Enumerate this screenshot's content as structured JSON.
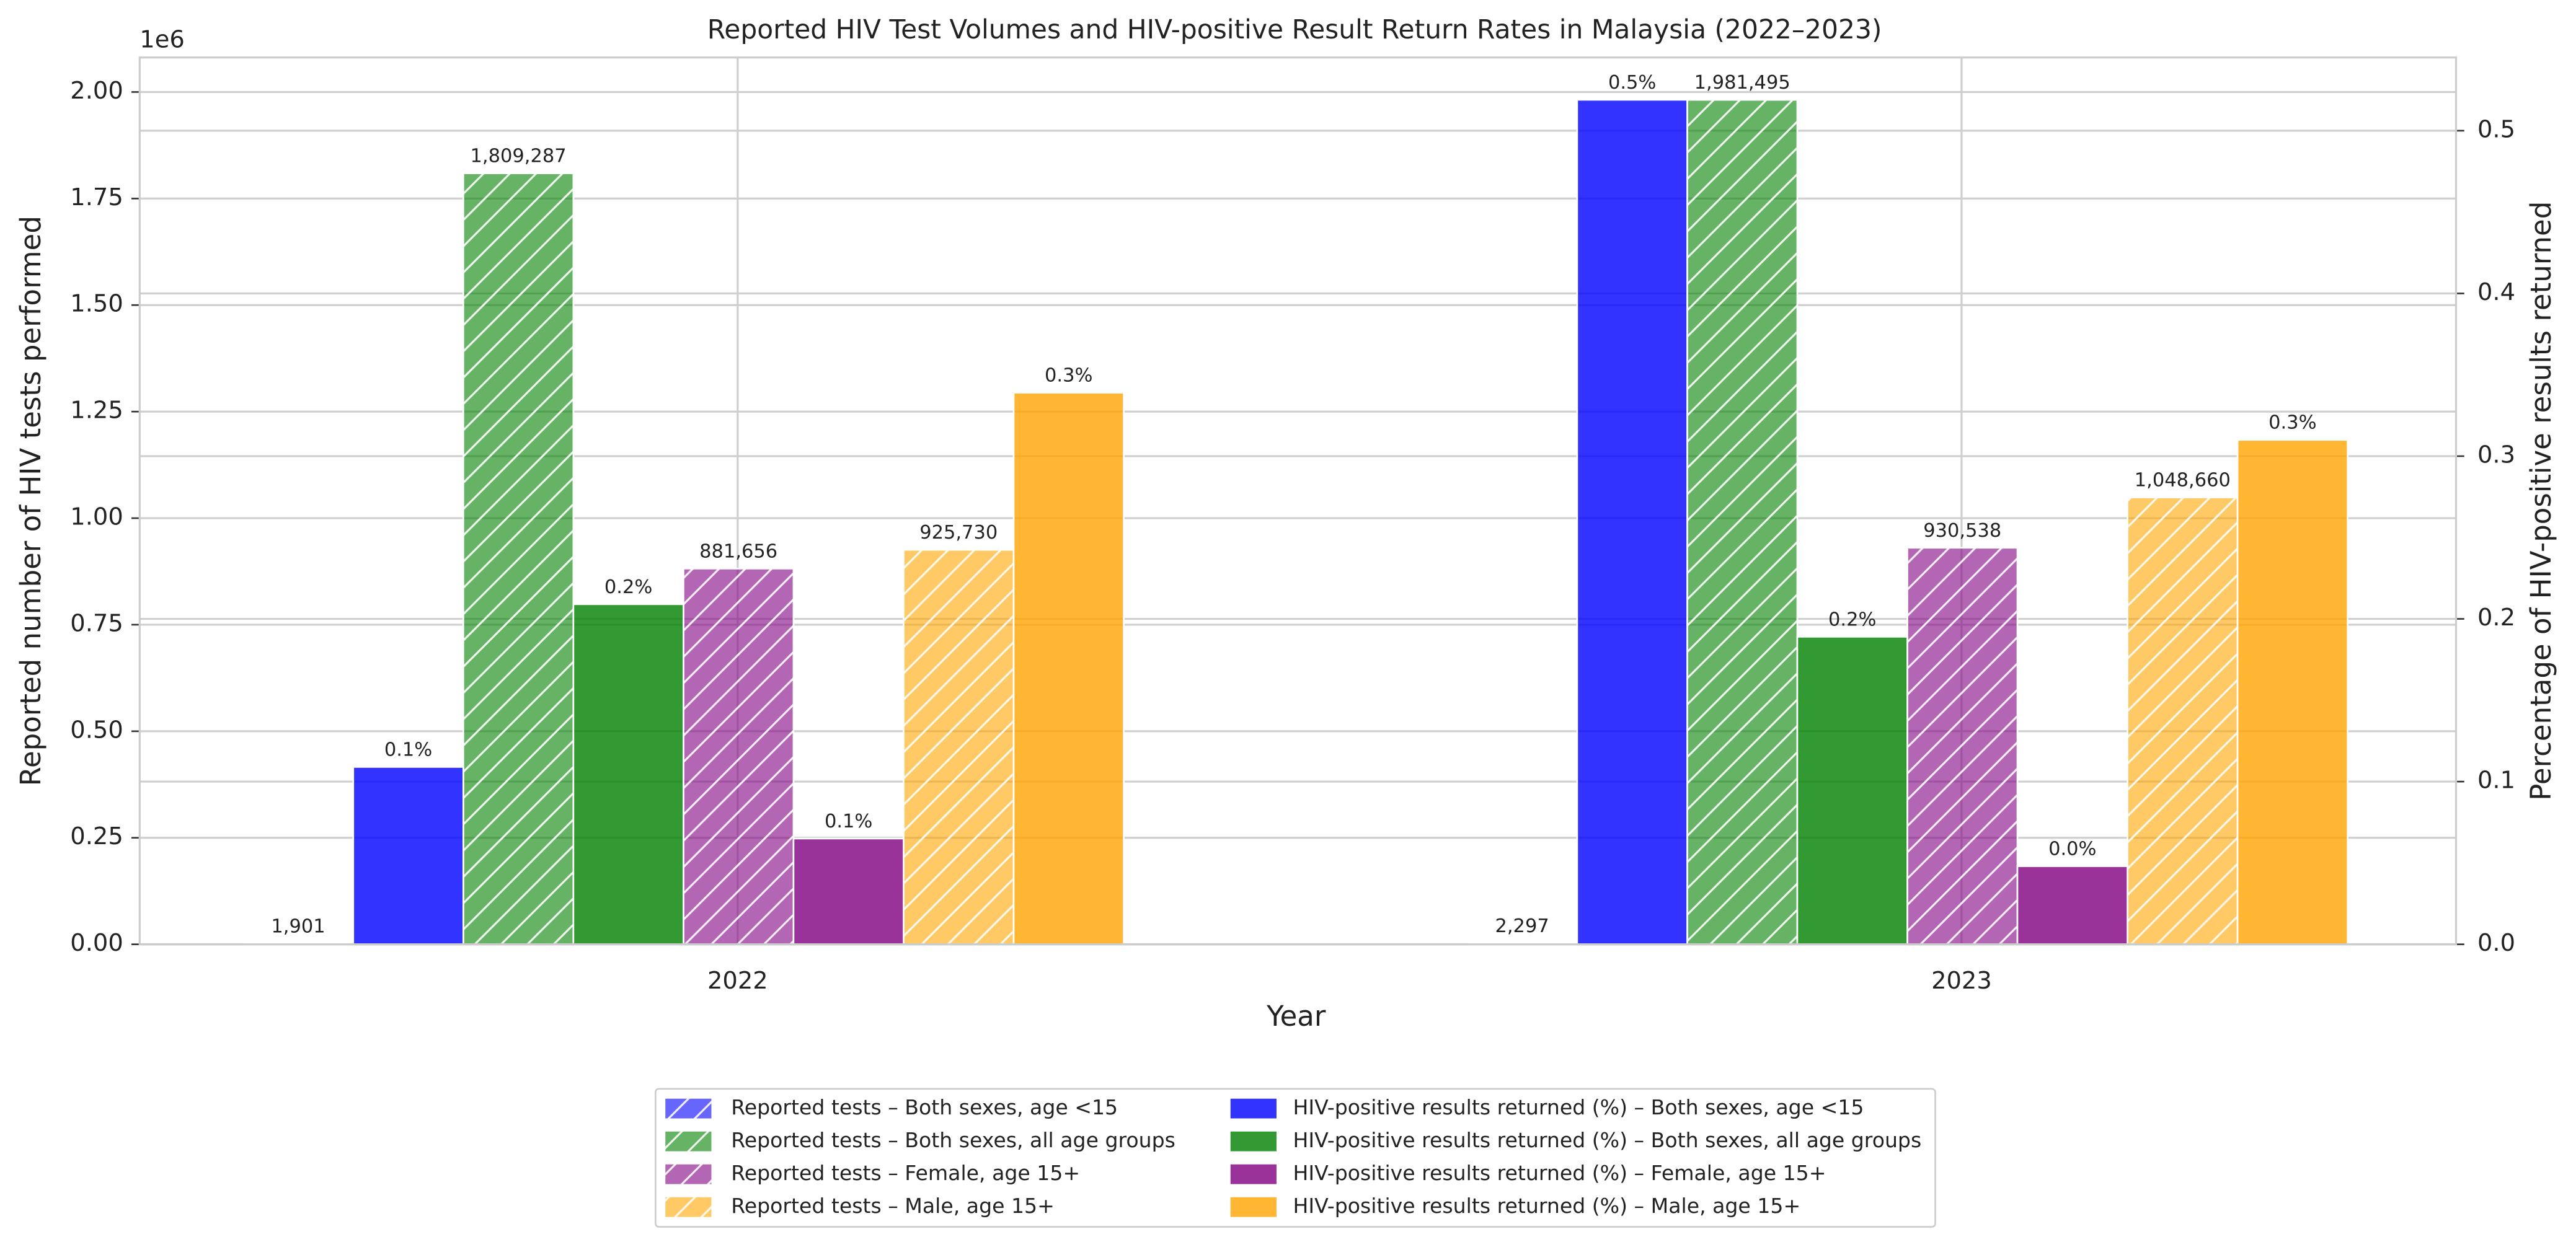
{
  "chart_data": {
    "type": "bar",
    "title": "Reported HIV Test Volumes and HIV-positive Result Return Rates in Malaysia (2022–2023)",
    "x_label": "Year",
    "y_label": "Reported number of HIV tests performed",
    "y2_label": "Percentage of HIV-positive results returned",
    "y_offset_label": "1e6",
    "categories": [
      "2022",
      "2023"
    ],
    "ylim": [
      0,
      2081000
    ],
    "yticks": [
      {
        "value": 0,
        "label": "0.00"
      },
      {
        "value": 250000,
        "label": "0.25"
      },
      {
        "value": 500000,
        "label": "0.50"
      },
      {
        "value": 750000,
        "label": "0.75"
      },
      {
        "value": 1000000,
        "label": "1.00"
      },
      {
        "value": 1250000,
        "label": "1.25"
      },
      {
        "value": 1500000,
        "label": "1.50"
      },
      {
        "value": 1750000,
        "label": "1.75"
      },
      {
        "value": 2000000,
        "label": "2.00"
      }
    ],
    "y2lim": [
      0,
      0.545
    ],
    "y2ticks": [
      {
        "value": 0,
        "label": "0.0"
      },
      {
        "value": 0.1,
        "label": "0.1"
      },
      {
        "value": 0.2,
        "label": "0.2"
      },
      {
        "value": 0.3,
        "label": "0.3"
      },
      {
        "value": 0.4,
        "label": "0.4"
      },
      {
        "value": 0.5,
        "label": "0.5"
      }
    ],
    "grid": true,
    "legend_position": "bottom",
    "series": [
      {
        "name": "Reported tests – Both sexes, age <15",
        "color": "#0000ff",
        "alpha": 0.6,
        "hatch": "/",
        "values": [
          1901,
          2297
        ],
        "value_labels": [
          "1,901",
          "2,297"
        ]
      },
      {
        "name": "Reported tests – Both sexes, all age groups",
        "color": "#008000",
        "alpha": 0.6,
        "hatch": "/",
        "values": [
          1809287,
          1981495
        ],
        "value_labels": [
          "1,809,287",
          "1,981,495"
        ]
      },
      {
        "name": "Reported tests – Female, age 15+",
        "color": "#800080",
        "alpha": 0.6,
        "hatch": "/",
        "values": [
          881656,
          930538
        ],
        "value_labels": [
          "881,656",
          "930,538"
        ]
      },
      {
        "name": "Reported tests – Male, age 15+",
        "color": "#ffa500",
        "alpha": 0.6,
        "hatch": "/",
        "values": [
          925730,
          1048660
        ],
        "value_labels": [
          "925,730",
          "1,048,660"
        ]
      },
      {
        "name": "HIV-positive results returned (%) – Both sexes, age <15",
        "color": "#0000ff",
        "alpha": 0.8,
        "axis": "y2",
        "values": [
          0.109,
          0.519
        ],
        "value_labels": [
          "0.1%",
          "0.5%"
        ]
      },
      {
        "name": "HIV-positive results returned (%) – Both sexes, all age groups",
        "color": "#008000",
        "alpha": 0.8,
        "axis": "y2",
        "values": [
          0.209,
          0.189
        ],
        "value_labels": [
          "0.2%",
          "0.2%"
        ]
      },
      {
        "name": "HIV-positive results returned (%) – Female, age 15+",
        "color": "#800080",
        "alpha": 0.8,
        "axis": "y2",
        "values": [
          0.065,
          0.048
        ],
        "value_labels": [
          "0.1%",
          "0.0%"
        ]
      },
      {
        "name": "HIV-positive results returned (%) – Male, age 15+",
        "color": "#ffa500",
        "alpha": 0.8,
        "axis": "y2",
        "values": [
          0.339,
          0.31
        ],
        "value_labels": [
          "0.3%",
          "0.3%"
        ]
      }
    ]
  }
}
